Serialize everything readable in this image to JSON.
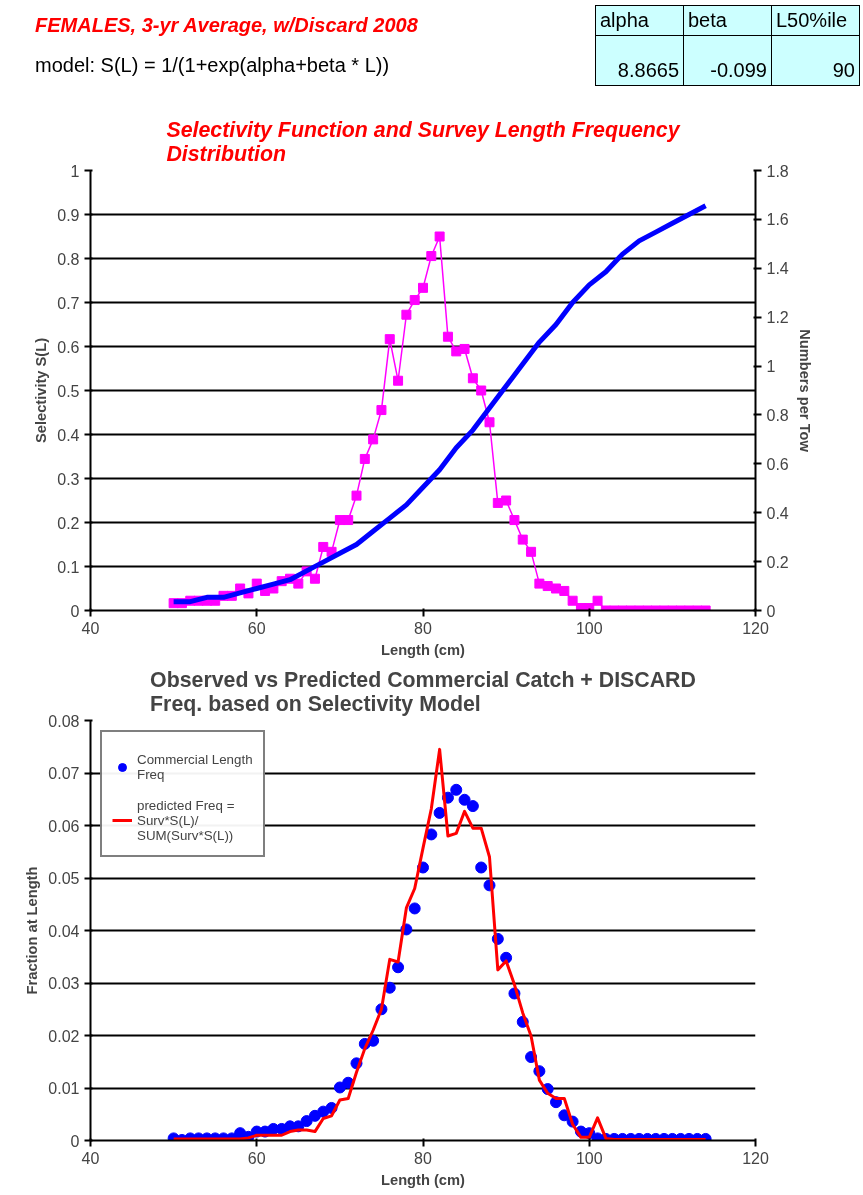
{
  "chart_data": [
    {
      "type": "line",
      "title": "Selectivity Function and Survey Length Frequency Distribution",
      "xlabel": "Length (cm)",
      "ylabel": "Selectivity S(L)",
      "y2label": "Numbers per Tow",
      "annotations": [
        "FEMALES, 3-yr Average,  w/Discard 2008",
        "model: S(L) = 1/(1+exp(alpha+beta * L))",
        "alpha",
        "beta",
        "L50%ile",
        "8.8665",
        "-0.099",
        "90"
      ],
      "xlim": [
        40,
        120
      ],
      "xticks": [
        40,
        60,
        80,
        100,
        120
      ],
      "ylim": [
        0,
        1
      ],
      "yticks": [
        0,
        0.1,
        0.2,
        0.3,
        0.4,
        0.5,
        0.6,
        0.7,
        0.8,
        0.9,
        1
      ],
      "y2lim": [
        0,
        1.8
      ],
      "y2ticks": [
        0,
        0.2,
        0.4,
        0.6,
        0.8,
        1,
        1.2,
        1.4,
        1.6,
        1.8
      ],
      "grid": "y",
      "legend": false,
      "series": [
        {
          "color": "#0000ff",
          "marker": "none",
          "x": [
            50,
            52,
            54,
            56,
            58,
            60,
            62,
            64,
            66,
            68,
            70,
            72,
            74,
            76,
            78,
            80,
            82,
            84,
            86,
            88,
            90,
            92,
            94,
            96,
            98,
            100,
            102,
            104,
            106,
            108,
            110,
            112,
            114
          ],
          "values": [
            0.02,
            0.02,
            0.03,
            0.03,
            0.04,
            0.05,
            0.06,
            0.07,
            0.09,
            0.11,
            0.13,
            0.15,
            0.18,
            0.21,
            0.24,
            0.28,
            0.32,
            0.37,
            0.41,
            0.46,
            0.51,
            0.56,
            0.61,
            0.65,
            0.7,
            0.74,
            0.77,
            0.81,
            0.84,
            0.86,
            0.88,
            0.9,
            0.92
          ]
        },
        {
          "color": "#ff00ff",
          "marker": "square",
          "axis": "y2",
          "x": [
            50,
            51,
            52,
            53,
            54,
            55,
            56,
            57,
            58,
            59,
            60,
            61,
            62,
            63,
            64,
            65,
            66,
            67,
            68,
            69,
            70,
            71,
            72,
            73,
            74,
            75,
            76,
            77,
            78,
            79,
            80,
            81,
            82,
            83,
            84,
            85,
            86,
            87,
            88,
            89,
            90,
            91,
            92,
            93,
            94,
            95,
            96,
            97,
            98,
            99,
            100,
            101,
            102,
            103,
            104,
            105,
            106,
            107,
            108,
            109,
            110,
            111,
            112,
            113,
            114
          ],
          "values": [
            0.03,
            0.03,
            0.04,
            0.04,
            0.04,
            0.04,
            0.06,
            0.06,
            0.09,
            0.07,
            0.11,
            0.08,
            0.09,
            0.12,
            0.13,
            0.11,
            0.16,
            0.13,
            0.26,
            0.24,
            0.37,
            0.37,
            0.47,
            0.62,
            0.7,
            0.82,
            1.11,
            0.94,
            1.21,
            1.27,
            1.32,
            1.45,
            1.53,
            1.12,
            1.06,
            1.07,
            0.95,
            0.9,
            0.77,
            0.44,
            0.45,
            0.37,
            0.29,
            0.24,
            0.11,
            0.1,
            0.09,
            0.08,
            0.04,
            0.01,
            0.01,
            0.04,
            0,
            0,
            0,
            0,
            0,
            0,
            0,
            0,
            0,
            0,
            0,
            0,
            0
          ]
        }
      ]
    },
    {
      "type": "scatter",
      "title": "Observed vs Predicted Commercial Catch + DISCARD Freq. based on Selectivity Model",
      "xlabel": "Length (cm)",
      "ylabel": "Fraction at Length",
      "xlim": [
        40,
        120
      ],
      "xticks": [
        40,
        60,
        80,
        100,
        120
      ],
      "ylim": [
        0,
        0.08
      ],
      "yticks": [
        0,
        0.01,
        0.02,
        0.03,
        0.04,
        0.05,
        0.06,
        0.07,
        0.08
      ],
      "grid": "y",
      "legend": "top left",
      "series": [
        {
          "name": "Commercial Length Freq",
          "type": "scatter",
          "color": "#0000ff",
          "marker": "circle",
          "x": [
            50,
            51,
            52,
            53,
            54,
            55,
            56,
            57,
            58,
            59,
            60,
            61,
            62,
            63,
            64,
            65,
            66,
            67,
            68,
            69,
            70,
            71,
            72,
            73,
            74,
            75,
            76,
            77,
            78,
            79,
            80,
            81,
            82,
            83,
            84,
            85,
            86,
            87,
            88,
            89,
            90,
            91,
            92,
            93,
            94,
            95,
            96,
            97,
            98,
            99,
            100,
            101,
            102,
            103,
            104,
            105,
            106,
            107,
            108,
            109,
            110,
            111,
            112,
            113,
            114
          ],
          "values": [
            0.0004,
            0.0001,
            0.0004,
            0.0004,
            0.0004,
            0.0004,
            0.0004,
            0.0004,
            0.0014,
            0.0007,
            0.0017,
            0.0017,
            0.0022,
            0.0022,
            0.0027,
            0.0027,
            0.0037,
            0.0047,
            0.0055,
            0.0062,
            0.0101,
            0.011,
            0.0147,
            0.0184,
            0.019,
            0.025,
            0.0291,
            0.033,
            0.0402,
            0.0442,
            0.052,
            0.0583,
            0.0624,
            0.0653,
            0.0668,
            0.0649,
            0.0637,
            0.052,
            0.0486,
            0.0384,
            0.0348,
            0.028,
            0.0226,
            0.0159,
            0.0132,
            0.0098,
            0.0073,
            0.0048,
            0.0036,
            0.0017,
            0.0014,
            0.0004,
            0.0003,
            0.0003,
            0.0003,
            0.0003,
            0.0003,
            0.0003,
            0.0003,
            0.0003,
            0.0003,
            0.0003,
            0.0003,
            0.0003,
            0.0003
          ]
        },
        {
          "name": "predicted Freq = Surv*S(L)/ SUM(Surv*S(L))",
          "type": "line",
          "color": "#ff0000",
          "marker": "none",
          "x": [
            50,
            51,
            52,
            53,
            54,
            55,
            56,
            57,
            58,
            59,
            60,
            61,
            62,
            63,
            64,
            65,
            66,
            67,
            68,
            69,
            70,
            71,
            72,
            73,
            74,
            75,
            76,
            77,
            78,
            79,
            80,
            81,
            82,
            83,
            84,
            85,
            86,
            87,
            88,
            89,
            90,
            91,
            92,
            93,
            94,
            95,
            96,
            97,
            98,
            99,
            100,
            101,
            102,
            103,
            104,
            105,
            106,
            107,
            108,
            109,
            110,
            111,
            112,
            113,
            114
          ],
          "values": [
            0.0003,
            0.0003,
            0.0003,
            0.0003,
            0.0003,
            0.0003,
            0.0003,
            0.0003,
            0.0003,
            0.0005,
            0.001,
            0.001,
            0.001,
            0.001,
            0.0017,
            0.002,
            0.002,
            0.0017,
            0.0042,
            0.0047,
            0.0077,
            0.008,
            0.013,
            0.0175,
            0.021,
            0.025,
            0.0345,
            0.034,
            0.0443,
            0.048,
            0.0557,
            0.0632,
            0.0745,
            0.058,
            0.0585,
            0.0627,
            0.0595,
            0.0595,
            0.054,
            0.0325,
            0.0342,
            0.0297,
            0.0243,
            0.0199,
            0.0115,
            0.009,
            0.008,
            0.008,
            0.0031,
            0.0006,
            0.0006,
            0.0043,
            0.0004,
            0.0002,
            0.0002,
            0.0002,
            0.0002,
            0.0002,
            0.0002,
            0.0002,
            0.0002,
            0.0002,
            0.0002,
            0.0002,
            0.0002
          ]
        }
      ]
    }
  ]
}
